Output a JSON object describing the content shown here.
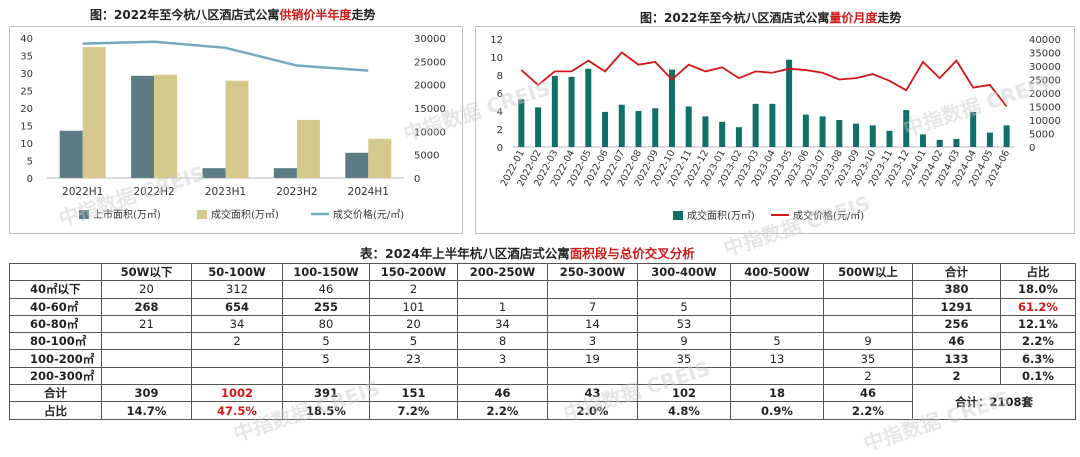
{
  "charts": {
    "left": {
      "title_pre": "图：2022年至今杭八区酒店式公寓",
      "title_hl": "供销价半年度",
      "title_post": "走势",
      "chart_data": {
        "type": "bar",
        "categories": [
          "2022H1",
          "2022H2",
          "2023H1",
          "2023H2",
          "2024H1"
        ],
        "series": [
          {
            "name": "上市面积(万㎡)",
            "type": "bar",
            "axis": "left",
            "color": "#5b7b85",
            "values": [
              13.5,
              29.2,
              2.8,
              2.8,
              7.2
            ]
          },
          {
            "name": "成交面积(万㎡)",
            "type": "bar",
            "axis": "left",
            "color": "#d6c98d",
            "values": [
              37.4,
              29.5,
              27.8,
              16.6,
              11.2
            ]
          },
          {
            "name": "成交价格(元/㎡)",
            "type": "line",
            "axis": "right",
            "color": "#6fa8bf",
            "values": [
              28800,
              29200,
              27900,
              24100,
              23000
            ]
          }
        ],
        "y_left": {
          "min": 0,
          "max": 40,
          "ticks": [
            "0",
            "5",
            "10",
            "15",
            "20",
            "25",
            "30",
            "35",
            "40"
          ]
        },
        "y_right": {
          "min": 0,
          "max": 30000,
          "ticks": [
            "0",
            "5000",
            "10000",
            "15000",
            "20000",
            "25000",
            "30000"
          ]
        },
        "legend_position": "bottom"
      }
    },
    "right": {
      "title_pre": "图：2022年至今杭八区酒店式公寓",
      "title_hl": "量价月度",
      "title_post": "走势",
      "chart_data": {
        "type": "bar",
        "categories": [
          "2022-01",
          "2022-02",
          "2022-03",
          "2022-04",
          "2022-05",
          "2022-06",
          "2022-07",
          "2022-08",
          "2022-09",
          "2022-10",
          "2022-11",
          "2022-12",
          "2023-01",
          "2023-02",
          "2023-03",
          "2023-04",
          "2023-05",
          "2023-06",
          "2023-07",
          "2023-08",
          "2023-09",
          "2023-10",
          "2023-11",
          "2023-12",
          "2024-01",
          "2024-02",
          "2024-03",
          "2024-04",
          "2024-05",
          "2024-06"
        ],
        "series": [
          {
            "name": "成交面积(万㎡)",
            "type": "bar",
            "axis": "left",
            "color": "#0f7065",
            "values": [
              5.3,
              4.4,
              7.9,
              7.8,
              8.7,
              3.9,
              4.7,
              4.0,
              4.3,
              8.6,
              4.5,
              3.4,
              2.8,
              2.2,
              4.8,
              4.8,
              9.7,
              3.6,
              3.4,
              3.0,
              2.6,
              2.4,
              1.8,
              4.1,
              1.4,
              0.8,
              0.9,
              3.9,
              1.6,
              2.4
            ]
          },
          {
            "name": "成交价格(元/㎡)",
            "type": "line",
            "axis": "right",
            "color": "#d01818",
            "values": [
              28500,
              23000,
              28000,
              28000,
              32000,
              28000,
              35000,
              30500,
              31500,
              25000,
              30500,
              28000,
              29500,
              25500,
              28000,
              27500,
              29000,
              28500,
              27500,
              25000,
              25500,
              27000,
              24500,
              21000,
              31500,
              25500,
              32000,
              22000,
              23000,
              15000
            ]
          }
        ],
        "y_left": {
          "min": 0,
          "max": 12,
          "ticks": [
            "0",
            "2",
            "4",
            "6",
            "8",
            "10",
            "12"
          ]
        },
        "y_right": {
          "min": 0,
          "max": 40000,
          "ticks": [
            "0",
            "5000",
            "10000",
            "15000",
            "20000",
            "25000",
            "30000",
            "35000",
            "40000"
          ]
        },
        "legend_position": "bottom"
      }
    }
  },
  "table": {
    "title_pre": "表：2024年上半年杭八区酒店式公寓",
    "title_hl": "面积段与总价交叉分析",
    "headers": [
      "",
      "50W以下",
      "50-100W",
      "100-150W",
      "150-200W",
      "200-250W",
      "250-300W",
      "300-400W",
      "400-500W",
      "500W以上",
      "合计",
      "占比"
    ],
    "rows": [
      {
        "label": "40㎡以下",
        "cells": [
          "20",
          "312",
          "46",
          "2",
          "",
          "",
          "",
          "",
          "",
          ""
        ],
        "total": "380",
        "share": "18.0%"
      },
      {
        "label": "40-60㎡",
        "cells": [
          "268",
          "654",
          "255",
          "101",
          "1",
          "7",
          "5",
          "",
          ""
        ],
        "total": "1291",
        "share": "61.2%"
      },
      {
        "label": "60-80㎡",
        "cells": [
          "21",
          "34",
          "80",
          "20",
          "34",
          "14",
          "53",
          "",
          ""
        ],
        "total": "256",
        "share": "12.1%"
      },
      {
        "label": "80-100㎡",
        "cells": [
          "",
          "2",
          "5",
          "5",
          "8",
          "3",
          "9",
          "5",
          "9"
        ],
        "total": "46",
        "share": "2.2%"
      },
      {
        "label": "100-200㎡",
        "cells": [
          "",
          "",
          "5",
          "23",
          "3",
          "19",
          "35",
          "13",
          "35"
        ],
        "total": "133",
        "share": "6.3%"
      },
      {
        "label": "200-300㎡",
        "cells": [
          "",
          "",
          "",
          "",
          "",
          "",
          "",
          "",
          "2"
        ],
        "total": "2",
        "share": "0.1%"
      }
    ],
    "sum_row": {
      "label": "合计",
      "cells": [
        "309",
        "1002",
        "391",
        "151",
        "46",
        "43",
        "102",
        "18",
        "46"
      ]
    },
    "share_row": {
      "label": "占比",
      "cells": [
        "14.7%",
        "47.5%",
        "18.5%",
        "7.2%",
        "2.2%",
        "2.0%",
        "4.8%",
        "0.9%",
        "2.2%"
      ]
    },
    "grand_total": "合计：2108套",
    "colors": {
      "highlight": "#d01818"
    }
  },
  "watermark": "中指数据 CREIS"
}
